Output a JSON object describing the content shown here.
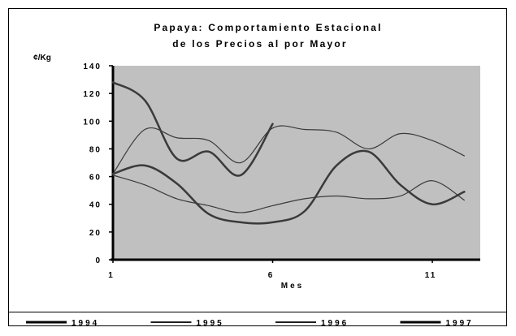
{
  "chart_data": {
    "type": "line",
    "title": [
      "Papaya: Comportamiento Estacional",
      "de los Precios al por Mayor"
    ],
    "ylabel": "¢/Kg",
    "xlabel": "Mes",
    "xlim": [
      1,
      12.5
    ],
    "ylim": [
      0,
      140
    ],
    "y_ticks": [
      0,
      20,
      40,
      60,
      80,
      100,
      120,
      140
    ],
    "x_ticks": [
      1,
      6,
      11
    ],
    "grid": false,
    "legend_position": "bottom",
    "series": [
      {
        "name": "1994",
        "color": "#3a3a3a",
        "stroke": 2.5,
        "x": [
          1,
          2,
          3,
          4,
          5,
          6
        ],
        "values": [
          128,
          115,
          73,
          78,
          61,
          98
        ]
      },
      {
        "name": "1995",
        "color": "#3a3a3a",
        "stroke": 1.2,
        "x": [
          1,
          2,
          3,
          4,
          5,
          6,
          7,
          8,
          9,
          10,
          11,
          12
        ],
        "values": [
          62,
          94,
          88,
          86,
          70,
          95,
          94,
          92,
          80,
          91,
          86,
          75
        ]
      },
      {
        "name": "1996",
        "color": "#3a3a3a",
        "stroke": 1.2,
        "x": [
          1,
          2,
          3,
          4,
          5,
          6,
          7,
          8,
          9,
          10,
          11,
          12
        ],
        "values": [
          61,
          54,
          44,
          39,
          34,
          39,
          44,
          46,
          44,
          46,
          57,
          43
        ]
      },
      {
        "name": "1997",
        "color": "#3a3a3a",
        "stroke": 2.5,
        "x": [
          1,
          2,
          3,
          4,
          5,
          6,
          7,
          8,
          9,
          10,
          11,
          12
        ],
        "values": [
          62,
          68,
          55,
          33,
          27,
          27,
          35,
          68,
          78,
          54,
          40,
          49
        ]
      }
    ]
  }
}
